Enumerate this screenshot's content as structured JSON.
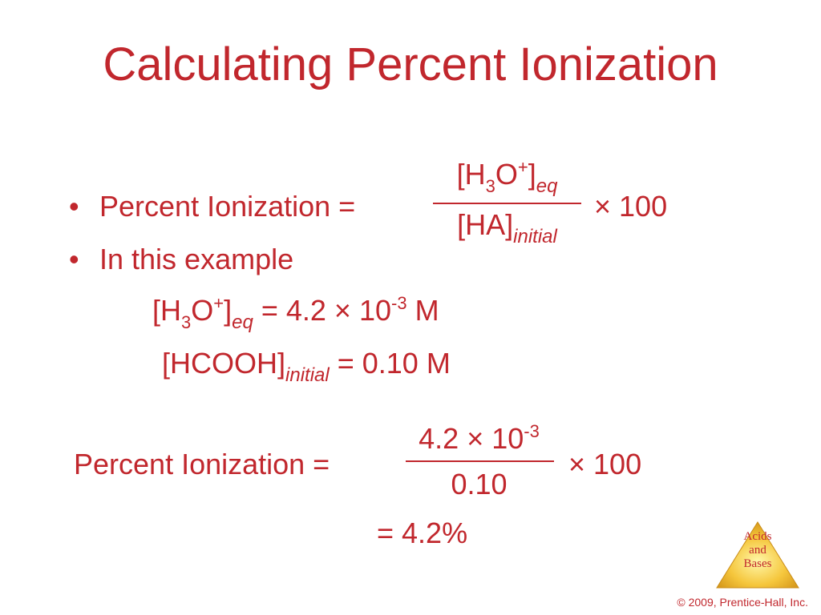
{
  "slide": {
    "title": "Calculating Percent Ionization",
    "bullet1": {
      "label": "Percent Ionization =",
      "multiplier": "× 100"
    },
    "frac1": {
      "numerator": {
        "open": "[H",
        "sub": "3",
        "mid": "O",
        "sup": "+",
        "close": "]",
        "suffix": "eq"
      },
      "denominator": {
        "text": "[HA]",
        "suffix": "initial"
      }
    },
    "bullet2": "In this example",
    "line1": {
      "open": "[H",
      "sub": "3",
      "mid": "O",
      "sup": "+",
      "close": "]",
      "suffix": "eq",
      "eq": "= 4.2 × 10",
      "exp": "-3",
      "unit": " M"
    },
    "line2": {
      "text": "[HCOOH]",
      "suffix": "initial",
      "eq": "= 0.10 M"
    },
    "calc": {
      "label": "Percent Ionization =",
      "numerator": {
        "text": "4.2 × 10",
        "exp": "-3"
      },
      "denominator": "0.10",
      "multiplier": "× 100",
      "result": "= 4.2%"
    },
    "logo": {
      "line1": "Acids",
      "line2": "and",
      "line3": "Bases"
    },
    "footer": "© 2009, Prentice-Hall, Inc."
  }
}
